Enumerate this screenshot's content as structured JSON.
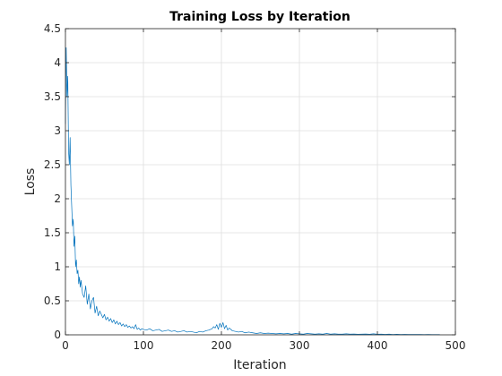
{
  "chart_data": {
    "type": "line",
    "title": "Training Loss by Iteration",
    "xlabel": "Iteration",
    "ylabel": "Loss",
    "xlim": [
      0,
      500
    ],
    "ylim": [
      0,
      4.5
    ],
    "xticks": [
      0,
      100,
      200,
      300,
      400,
      500
    ],
    "xtick_labels": [
      "0",
      "100",
      "200",
      "300",
      "400",
      "500"
    ],
    "yticks": [
      0,
      0.5,
      1,
      1.5,
      2,
      2.5,
      3,
      3.5,
      4,
      4.5
    ],
    "ytick_labels": [
      "0",
      "0.5",
      "1",
      "1.5",
      "2",
      "2.5",
      "3",
      "3.5",
      "4",
      "4.5"
    ],
    "grid": true,
    "colors": {
      "line": "#0072BD",
      "grid": "#dfdfdf",
      "axis": "#262626",
      "background": "#ffffff"
    },
    "series": [
      {
        "x": [
          0,
          1,
          2,
          3,
          4,
          5,
          6,
          7,
          8,
          9,
          10,
          11,
          12,
          13,
          14,
          15,
          16,
          17,
          18,
          19,
          20,
          22,
          24,
          26,
          28,
          30,
          32,
          34,
          36,
          38,
          40,
          42,
          44,
          46,
          48,
          50,
          52,
          54,
          56,
          58,
          60,
          62,
          64,
          66,
          68,
          70,
          72,
          74,
          76,
          78,
          80,
          82,
          84,
          86,
          88,
          90,
          92,
          94,
          96,
          98,
          100,
          104,
          108,
          112,
          116,
          120,
          124,
          128,
          132,
          136,
          140,
          144,
          148,
          152,
          156,
          160,
          164,
          168,
          172,
          176,
          180,
          184,
          188,
          190,
          192,
          194,
          196,
          198,
          200,
          202,
          204,
          206,
          208,
          210,
          214,
          218,
          222,
          226,
          230,
          235,
          240,
          245,
          250,
          255,
          260,
          265,
          270,
          275,
          280,
          285,
          290,
          295,
          300,
          305,
          310,
          315,
          320,
          325,
          330,
          335,
          340,
          345,
          350,
          355,
          360,
          365,
          370,
          375,
          380,
          385,
          390,
          395,
          400,
          405,
          410,
          415,
          420,
          425,
          430,
          435,
          440,
          445,
          450,
          455,
          460,
          465,
          470,
          475,
          480
        ],
        "y": [
          3.1,
          4.22,
          3.5,
          3.8,
          2.7,
          2.5,
          2.9,
          2.2,
          1.9,
          1.6,
          1.7,
          1.3,
          1.45,
          1.0,
          1.1,
          0.9,
          0.95,
          0.75,
          0.85,
          0.7,
          0.8,
          0.6,
          0.55,
          0.72,
          0.45,
          0.6,
          0.38,
          0.5,
          0.55,
          0.32,
          0.42,
          0.28,
          0.35,
          0.3,
          0.25,
          0.3,
          0.22,
          0.26,
          0.2,
          0.24,
          0.18,
          0.22,
          0.16,
          0.2,
          0.15,
          0.18,
          0.13,
          0.16,
          0.12,
          0.15,
          0.11,
          0.13,
          0.1,
          0.12,
          0.09,
          0.15,
          0.08,
          0.1,
          0.07,
          0.09,
          0.08,
          0.07,
          0.09,
          0.06,
          0.07,
          0.08,
          0.05,
          0.06,
          0.07,
          0.05,
          0.06,
          0.04,
          0.05,
          0.06,
          0.04,
          0.05,
          0.04,
          0.03,
          0.05,
          0.04,
          0.06,
          0.07,
          0.09,
          0.12,
          0.1,
          0.15,
          0.08,
          0.17,
          0.11,
          0.18,
          0.09,
          0.14,
          0.07,
          0.1,
          0.06,
          0.05,
          0.04,
          0.05,
          0.03,
          0.04,
          0.03,
          0.02,
          0.03,
          0.02,
          0.025,
          0.02,
          0.015,
          0.02,
          0.015,
          0.02,
          0.01,
          0.02,
          0.015,
          0.01,
          0.02,
          0.015,
          0.01,
          0.015,
          0.01,
          0.02,
          0.01,
          0.015,
          0.01,
          0.01,
          0.015,
          0.01,
          0.012,
          0.008,
          0.01,
          0.012,
          0.008,
          0.015,
          0.008,
          0.01,
          0.007,
          0.01,
          0.006,
          0.008,
          0.006,
          0.007,
          0.005,
          0.006,
          0.005,
          0.005,
          0.004,
          0.005,
          0.004,
          0.004,
          0.003
        ]
      }
    ]
  }
}
